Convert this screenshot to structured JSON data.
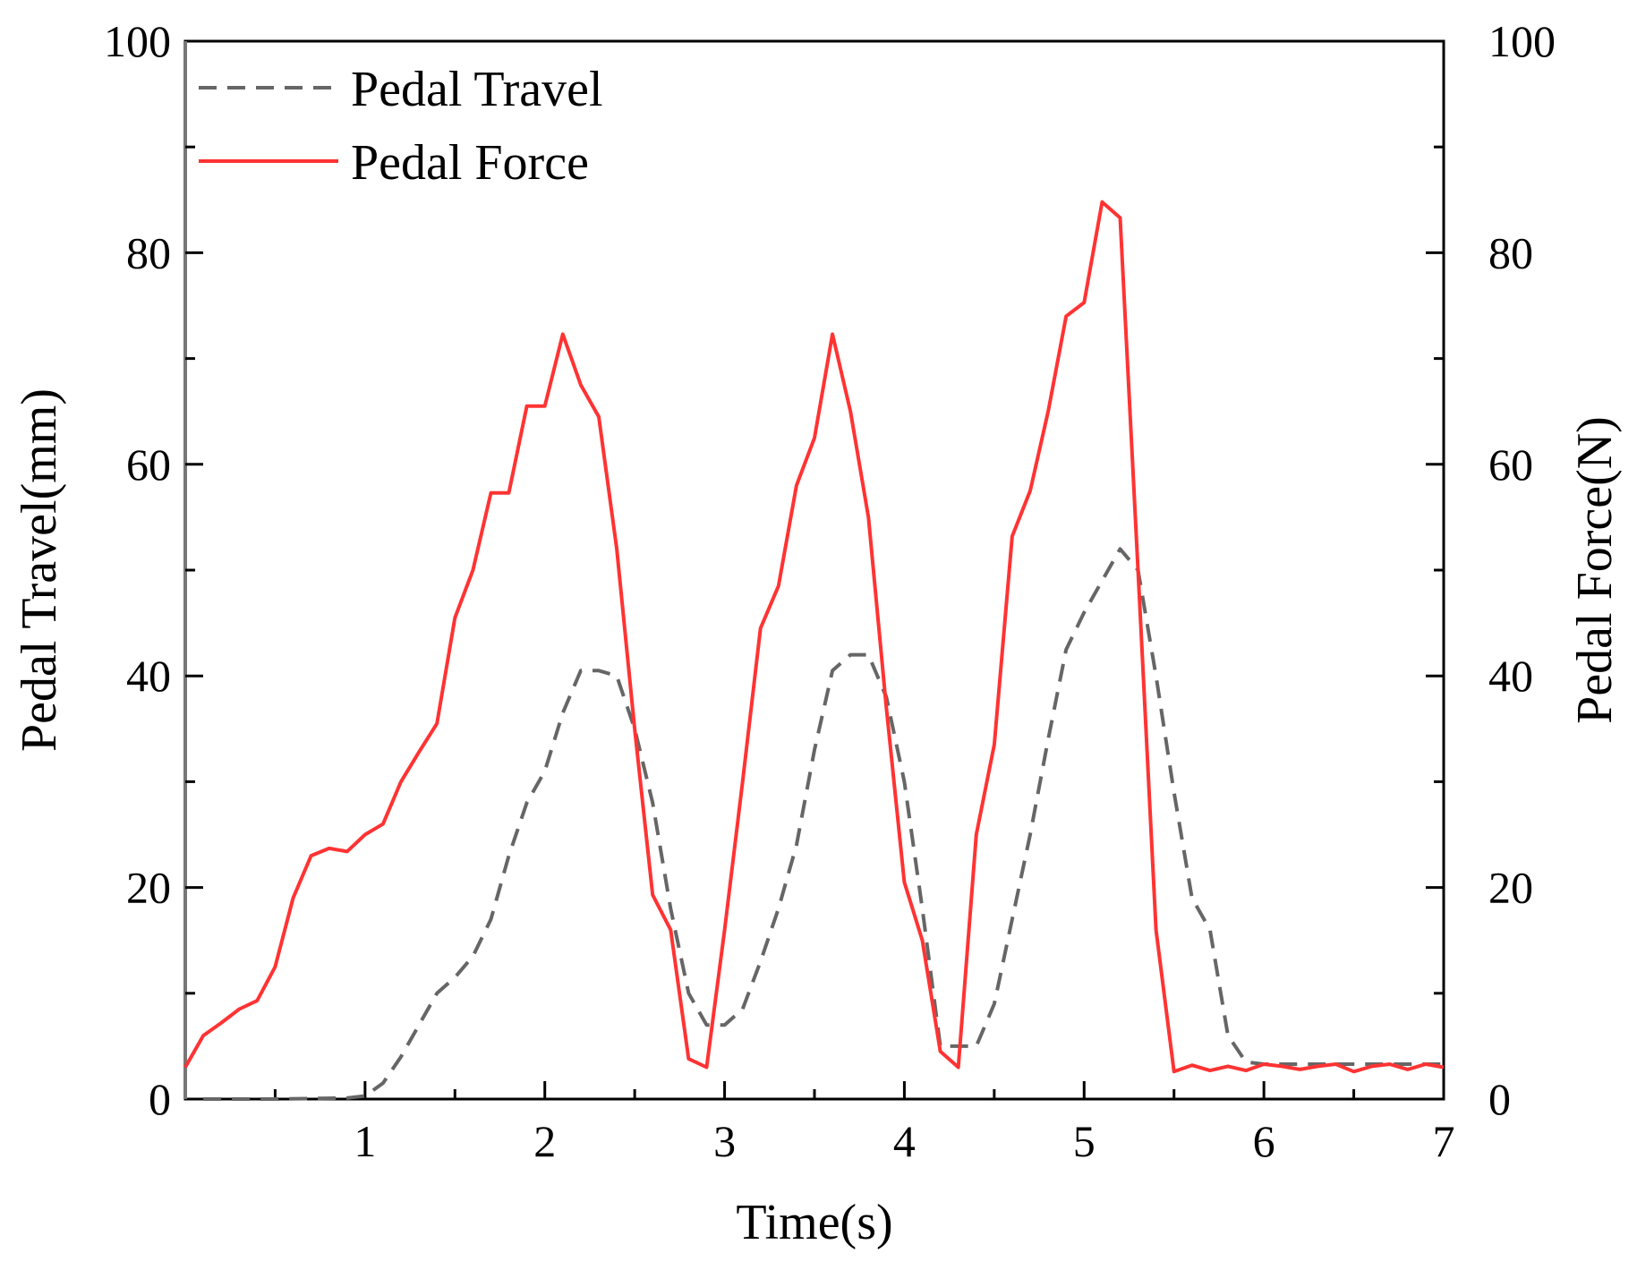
{
  "chart_data": {
    "type": "line",
    "xlabel": "Time(s)",
    "ylabel": "Pedal Travel(mm)",
    "y2label": "Pedal Force(N)",
    "xlim": [
      0,
      7
    ],
    "ylim": [
      0,
      100
    ],
    "y2lim": [
      0,
      100
    ],
    "x_ticks": [
      1,
      2,
      3,
      4,
      5,
      6,
      7
    ],
    "y_ticks": [
      0,
      20,
      40,
      60,
      80,
      100
    ],
    "y2_ticks": [
      0,
      20,
      40,
      60,
      80,
      100
    ],
    "grid": false,
    "legend_position": "top-left",
    "series": [
      {
        "name": "Pedal Travel",
        "axis": "left",
        "color": "#666666",
        "style": "dashed",
        "points": [
          [
            0.1,
            0
          ],
          [
            0.5,
            0
          ],
          [
            0.9,
            0.1
          ],
          [
            1.0,
            0.3
          ],
          [
            1.1,
            1.5
          ],
          [
            1.2,
            4
          ],
          [
            1.3,
            7
          ],
          [
            1.4,
            10
          ],
          [
            1.5,
            11.5
          ],
          [
            1.6,
            13.5
          ],
          [
            1.7,
            17
          ],
          [
            1.8,
            23
          ],
          [
            1.9,
            28
          ],
          [
            2.0,
            31
          ],
          [
            2.1,
            36.5
          ],
          [
            2.2,
            40.5
          ],
          [
            2.3,
            40.5
          ],
          [
            2.4,
            40
          ],
          [
            2.5,
            35
          ],
          [
            2.6,
            28
          ],
          [
            2.7,
            18
          ],
          [
            2.8,
            10
          ],
          [
            2.9,
            7
          ],
          [
            3.0,
            7
          ],
          [
            3.1,
            8.5
          ],
          [
            3.2,
            13
          ],
          [
            3.3,
            18
          ],
          [
            3.4,
            24
          ],
          [
            3.5,
            33
          ],
          [
            3.6,
            40.5
          ],
          [
            3.7,
            42
          ],
          [
            3.8,
            42
          ],
          [
            3.9,
            38
          ],
          [
            4.0,
            30
          ],
          [
            4.1,
            18
          ],
          [
            4.2,
            5
          ],
          [
            4.3,
            5
          ],
          [
            4.4,
            5
          ],
          [
            4.5,
            9
          ],
          [
            4.6,
            17
          ],
          [
            4.7,
            25
          ],
          [
            4.8,
            34
          ],
          [
            4.9,
            42.5
          ],
          [
            5.0,
            46
          ],
          [
            5.1,
            49
          ],
          [
            5.2,
            52
          ],
          [
            5.3,
            50
          ],
          [
            5.4,
            40
          ],
          [
            5.5,
            29
          ],
          [
            5.6,
            19
          ],
          [
            5.7,
            16
          ],
          [
            5.8,
            6
          ],
          [
            5.9,
            3.5
          ],
          [
            6.0,
            3.3
          ],
          [
            6.5,
            3.3
          ],
          [
            7.0,
            3.3
          ]
        ]
      },
      {
        "name": "Pedal Force",
        "axis": "right",
        "color": "#ff3333",
        "style": "solid",
        "points": [
          [
            0.0,
            3
          ],
          [
            0.1,
            6
          ],
          [
            0.2,
            7.2
          ],
          [
            0.3,
            8.5
          ],
          [
            0.4,
            9.3
          ],
          [
            0.5,
            12.5
          ],
          [
            0.6,
            19
          ],
          [
            0.7,
            23
          ],
          [
            0.8,
            23.7
          ],
          [
            0.9,
            23.4
          ],
          [
            1.0,
            25
          ],
          [
            1.1,
            26
          ],
          [
            1.2,
            30
          ],
          [
            1.3,
            32.8
          ],
          [
            1.4,
            35.5
          ],
          [
            1.5,
            45.5
          ],
          [
            1.6,
            50
          ],
          [
            1.7,
            57.3
          ],
          [
            1.8,
            57.3
          ],
          [
            1.9,
            65.5
          ],
          [
            2.0,
            65.5
          ],
          [
            2.1,
            72.3
          ],
          [
            2.2,
            67.5
          ],
          [
            2.3,
            64.5
          ],
          [
            2.4,
            52
          ],
          [
            2.5,
            35
          ],
          [
            2.6,
            19.3
          ],
          [
            2.7,
            16
          ],
          [
            2.8,
            3.8
          ],
          [
            2.9,
            3
          ],
          [
            3.0,
            16
          ],
          [
            3.1,
            30
          ],
          [
            3.2,
            44.5
          ],
          [
            3.3,
            48.5
          ],
          [
            3.4,
            58
          ],
          [
            3.5,
            62.5
          ],
          [
            3.6,
            72.3
          ],
          [
            3.7,
            65
          ],
          [
            3.8,
            55
          ],
          [
            3.9,
            37
          ],
          [
            4.0,
            20.5
          ],
          [
            4.1,
            15
          ],
          [
            4.2,
            4.5
          ],
          [
            4.3,
            3
          ],
          [
            4.4,
            25
          ],
          [
            4.5,
            33.5
          ],
          [
            4.6,
            53.2
          ],
          [
            4.7,
            57.5
          ],
          [
            4.8,
            65
          ],
          [
            4.9,
            74
          ],
          [
            5.0,
            75.3
          ],
          [
            5.1,
            84.8
          ],
          [
            5.2,
            83.3
          ],
          [
            5.3,
            50
          ],
          [
            5.4,
            16
          ],
          [
            5.5,
            2.6
          ],
          [
            5.6,
            3.2
          ],
          [
            5.7,
            2.7
          ],
          [
            5.8,
            3.1
          ],
          [
            5.9,
            2.7
          ],
          [
            6.0,
            3.3
          ],
          [
            6.1,
            3.1
          ],
          [
            6.2,
            2.8
          ],
          [
            6.3,
            3.1
          ],
          [
            6.4,
            3.3
          ],
          [
            6.5,
            2.6
          ],
          [
            6.6,
            3.1
          ],
          [
            6.7,
            3.3
          ],
          [
            6.8,
            2.8
          ],
          [
            6.9,
            3.3
          ],
          [
            7.0,
            3
          ]
        ]
      }
    ]
  }
}
